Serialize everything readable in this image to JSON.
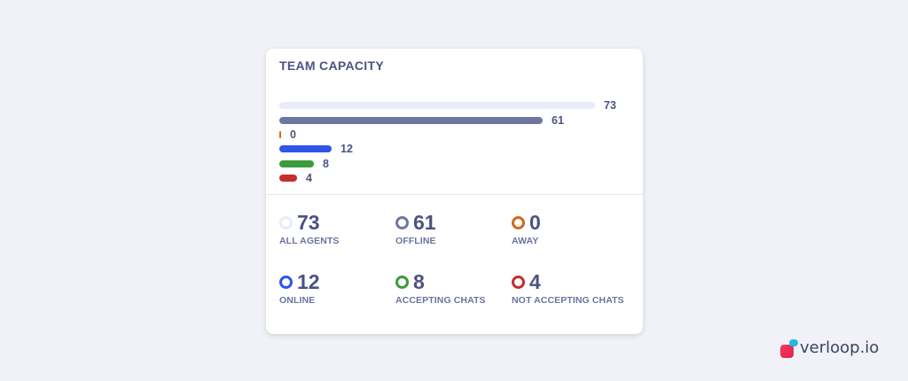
{
  "card": {
    "title": "TEAM CAPACITY",
    "max_value": 73,
    "bars": [
      {
        "id": "all-agents",
        "value": 73,
        "label": "73",
        "color": "#e8ecf7"
      },
      {
        "id": "offline",
        "value": 61,
        "label": "61",
        "color": "#6e77a1"
      },
      {
        "id": "away",
        "value": 0,
        "label": "0",
        "color": "#d2691e"
      },
      {
        "id": "online",
        "value": 12,
        "label": "12",
        "color": "#2f54eb"
      },
      {
        "id": "accepting-chats",
        "value": 8,
        "label": "8",
        "color": "#3d9a3d"
      },
      {
        "id": "not-accepting-chats",
        "value": 4,
        "label": "4",
        "color": "#c62d2d"
      }
    ],
    "stats": [
      {
        "id": "all-agents",
        "value": "73",
        "label": "ALL AGENTS",
        "color": "#e8ecf7"
      },
      {
        "id": "offline",
        "value": "61",
        "label": "OFFLINE",
        "color": "#6e77a1"
      },
      {
        "id": "away",
        "value": "0",
        "label": "AWAY",
        "color": "#d2691e"
      },
      {
        "id": "online",
        "value": "12",
        "label": "ONLINE",
        "color": "#2f54eb"
      },
      {
        "id": "accepting-chats",
        "value": "8",
        "label": "ACCEPTING CHATS",
        "color": "#3d9a3d"
      },
      {
        "id": "not-accepting-chats",
        "value": "4",
        "label": "NOT ACCEPTING CHATS",
        "color": "#c62d2d"
      }
    ]
  },
  "brand": {
    "name": "verloop.io",
    "icon": "verloop-logo-icon"
  }
}
